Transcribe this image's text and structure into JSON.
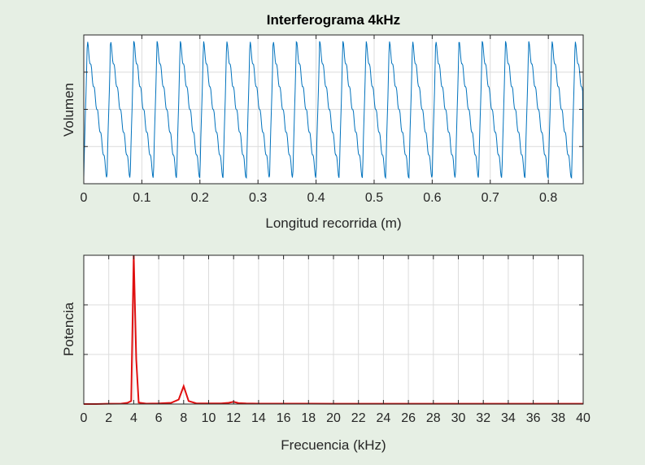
{
  "chart_data": [
    {
      "type": "line",
      "title": "Interferograma 4kHz",
      "xlabel": "Longitud recorrida (m)",
      "ylabel": "Volumen",
      "xlim": [
        0,
        0.86
      ],
      "ylim": [
        -1.0,
        1.0
      ],
      "x_ticks": [
        "0",
        "0.1",
        "0.2",
        "0.3",
        "0.4",
        "0.5",
        "0.6",
        "0.7",
        "0.8"
      ],
      "y_tick_labels_shown": false,
      "grid": true,
      "color": "#0072bd",
      "series": [
        {
          "cycle_period_m": 0.04,
          "phase_zero_crossing_m": 0.0,
          "peak_amplitude": 0.9,
          "trough_amplitude": -0.92,
          "ripple_amplitude": 0.1,
          "end_value_at_xmax": -1.0
        }
      ]
    },
    {
      "type": "line",
      "title": "",
      "xlabel": "Frecuencia (kHz)",
      "ylabel": "Potencia",
      "xlim": [
        0,
        40
      ],
      "ylim": [
        0,
        1.0
      ],
      "x_ticks": [
        "0",
        "2",
        "4",
        "6",
        "8",
        "10",
        "12",
        "14",
        "16",
        "18",
        "20",
        "22",
        "24",
        "26",
        "28",
        "30",
        "32",
        "34",
        "36",
        "38",
        "40"
      ],
      "y_tick_labels_shown": false,
      "grid": true,
      "color": "#e01010",
      "series": [
        {
          "x": [
            0,
            1,
            2,
            3,
            3.5,
            3.8,
            4.0,
            4.2,
            4.4,
            5,
            6,
            7,
            7.6,
            8.0,
            8.4,
            9,
            10,
            11,
            11.6,
            12.0,
            12.4,
            13,
            14,
            16,
            20,
            24,
            28,
            32,
            36,
            40
          ],
          "y": [
            0.0,
            0.0,
            0.002,
            0.003,
            0.008,
            0.02,
            1.0,
            0.3,
            0.01,
            0.003,
            0.004,
            0.008,
            0.03,
            0.12,
            0.02,
            0.005,
            0.004,
            0.004,
            0.008,
            0.015,
            0.006,
            0.004,
            0.003,
            0.003,
            0.002,
            0.002,
            0.002,
            0.002,
            0.002,
            0.002
          ]
        }
      ]
    }
  ]
}
